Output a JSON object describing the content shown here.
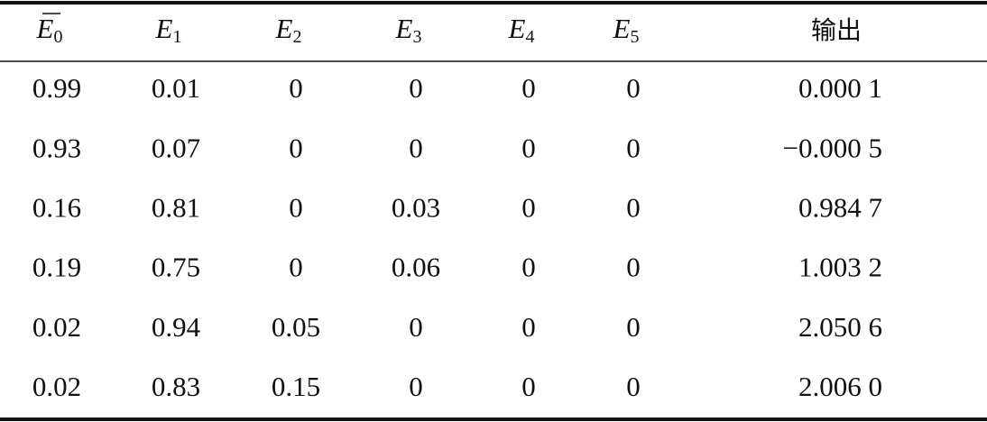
{
  "table": {
    "headers": [
      {
        "symbol": "E",
        "sub": "0",
        "overline": true
      },
      {
        "symbol": "E",
        "sub": "1"
      },
      {
        "symbol": "E",
        "sub": "2"
      },
      {
        "symbol": "E",
        "sub": "3"
      },
      {
        "symbol": "E",
        "sub": "4"
      },
      {
        "symbol": "E",
        "sub": "5"
      },
      {
        "text": "输出"
      }
    ],
    "rows": [
      [
        "0.99",
        "0.01",
        "0",
        "0",
        "0",
        "0",
        "0.000 1"
      ],
      [
        "0.93",
        "0.07",
        "0",
        "0",
        "0",
        "0",
        "−0.000 5"
      ],
      [
        "0.16",
        "0.81",
        "0",
        "0.03",
        "0",
        "0",
        "0.984 7"
      ],
      [
        "0.19",
        "0.75",
        "0",
        "0.06",
        "0",
        "0",
        "1.003 2"
      ],
      [
        "0.02",
        "0.94",
        "0.05",
        "0",
        "0",
        "0",
        "2.050 6"
      ],
      [
        "0.02",
        "0.83",
        "0.15",
        "0",
        "0",
        "0",
        "2.006 0"
      ]
    ]
  }
}
